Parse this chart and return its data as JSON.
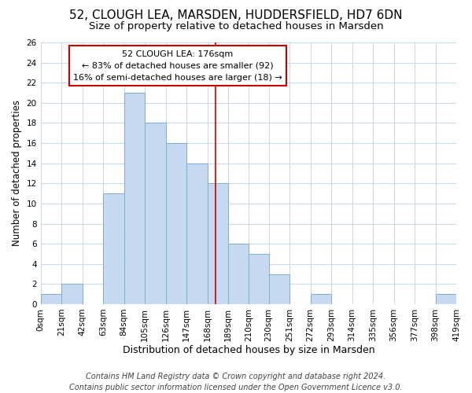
{
  "title": "52, CLOUGH LEA, MARSDEN, HUDDERSFIELD, HD7 6DN",
  "subtitle": "Size of property relative to detached houses in Marsden",
  "xlabel": "Distribution of detached houses by size in Marsden",
  "ylabel": "Number of detached properties",
  "bin_edges": [
    0,
    21,
    42,
    63,
    84,
    105,
    126,
    147,
    168,
    189,
    210,
    230,
    251,
    272,
    293,
    314,
    335,
    356,
    377,
    398,
    419
  ],
  "counts": [
    1,
    2,
    0,
    11,
    21,
    18,
    16,
    14,
    12,
    6,
    5,
    3,
    0,
    1,
    0,
    0,
    0,
    0,
    0,
    1
  ],
  "bar_color": "#c6d9f0",
  "bar_edge_color": "#7bafd4",
  "vline_x": 176,
  "vline_color": "#cc0000",
  "ylim": [
    0,
    26
  ],
  "yticks": [
    0,
    2,
    4,
    6,
    8,
    10,
    12,
    14,
    16,
    18,
    20,
    22,
    24,
    26
  ],
  "xtick_labels": [
    "0sqm",
    "21sqm",
    "42sqm",
    "63sqm",
    "84sqm",
    "105sqm",
    "126sqm",
    "147sqm",
    "168sqm",
    "189sqm",
    "210sqm",
    "230sqm",
    "251sqm",
    "272sqm",
    "293sqm",
    "314sqm",
    "335sqm",
    "356sqm",
    "377sqm",
    "398sqm",
    "419sqm"
  ],
  "annotation_title": "52 CLOUGH LEA: 176sqm",
  "annotation_line1": "← 83% of detached houses are smaller (92)",
  "annotation_line2": "16% of semi-detached houses are larger (18) →",
  "footer_line1": "Contains HM Land Registry data © Crown copyright and database right 2024.",
  "footer_line2": "Contains public sector information licensed under the Open Government Licence v3.0.",
  "background_color": "#ffffff",
  "grid_color": "#c8d8e8",
  "title_fontsize": 11,
  "subtitle_fontsize": 9.5,
  "xlabel_fontsize": 9,
  "ylabel_fontsize": 8.5,
  "tick_fontsize": 7.5,
  "annot_fontsize": 8,
  "footer_fontsize": 7
}
